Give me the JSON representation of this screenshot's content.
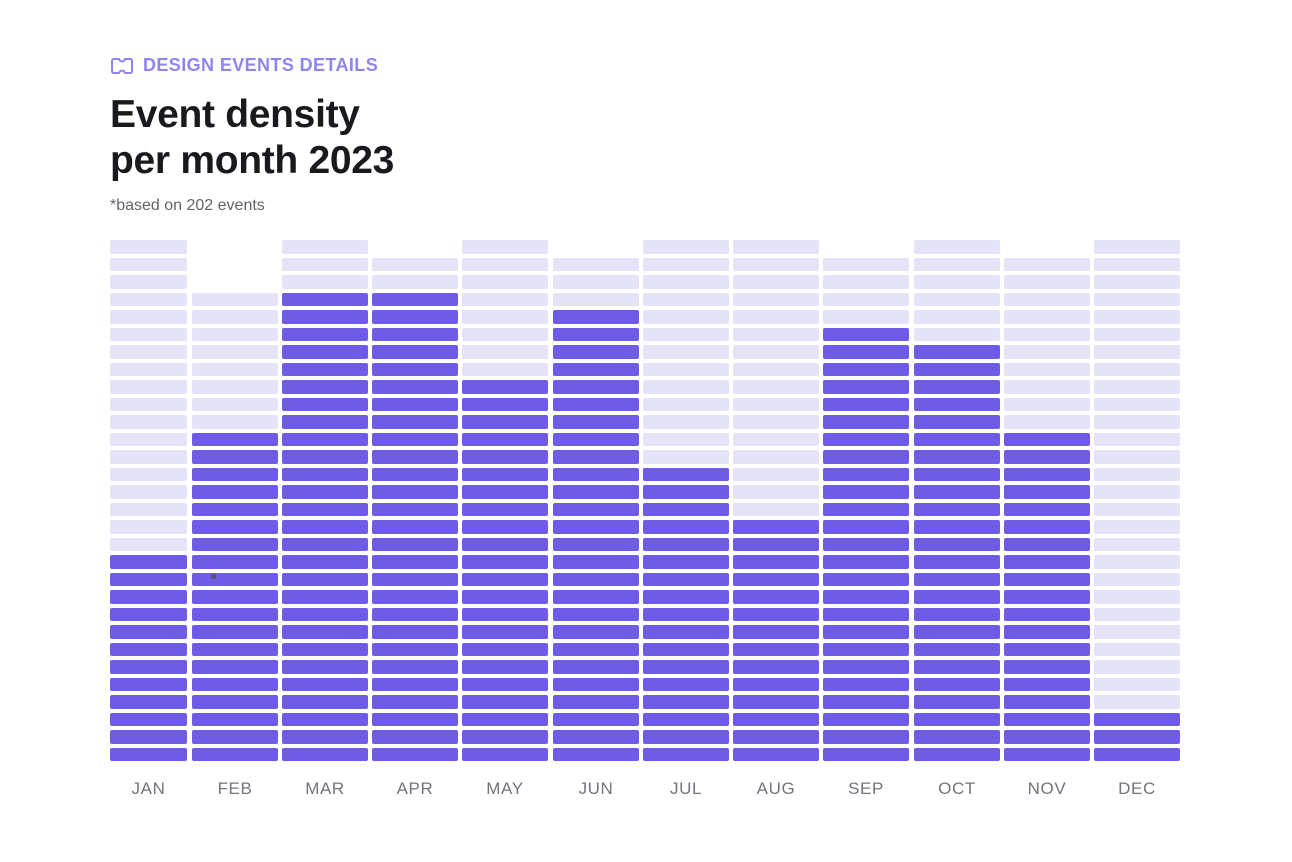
{
  "header": {
    "icon": "ticket-icon",
    "label": "DESIGN EVENTS DETAILS",
    "accent_color": "#8f85f0"
  },
  "title": {
    "line1": "Event density",
    "line2": "per month 2023"
  },
  "subtitle": "*based on 202 events",
  "chart_data": {
    "type": "bar",
    "variant": "waffle-equalizer-columns",
    "title": "Event density per month 2023",
    "subtitle": "*based on 202 events",
    "categories": [
      "JAN",
      "FEB",
      "MAR",
      "APR",
      "MAY",
      "JUN",
      "JUL",
      "AUG",
      "SEP",
      "OCT",
      "NOV",
      "DEC"
    ],
    "rows_total": 30,
    "ylim": [
      0,
      30
    ],
    "grid": false,
    "legend": "none",
    "series": [
      {
        "name": "filled cells (dark)",
        "values": [
          12,
          19,
          27,
          27,
          22,
          26,
          17,
          14,
          25,
          24,
          19,
          3
        ]
      },
      {
        "name": "faded cells (light)",
        "values": [
          18,
          8,
          3,
          2,
          8,
          3,
          13,
          16,
          4,
          6,
          10,
          27
        ]
      }
    ],
    "months": [
      {
        "label": "JAN",
        "empty": 0,
        "faded": 18,
        "filled": 12
      },
      {
        "label": "FEB",
        "empty": 3,
        "faded": 8,
        "filled": 19
      },
      {
        "label": "MAR",
        "empty": 0,
        "faded": 3,
        "filled": 27
      },
      {
        "label": "APR",
        "empty": 1,
        "faded": 2,
        "filled": 27
      },
      {
        "label": "MAY",
        "empty": 0,
        "faded": 8,
        "filled": 22
      },
      {
        "label": "JUN",
        "empty": 1,
        "faded": 3,
        "filled": 26
      },
      {
        "label": "JUL",
        "empty": 0,
        "faded": 13,
        "filled": 17
      },
      {
        "label": "AUG",
        "empty": 0,
        "faded": 16,
        "filled": 14
      },
      {
        "label": "SEP",
        "empty": 1,
        "faded": 4,
        "filled": 25
      },
      {
        "label": "OCT",
        "empty": 0,
        "faded": 6,
        "filled": 24
      },
      {
        "label": "NOV",
        "empty": 1,
        "faded": 10,
        "filled": 19
      },
      {
        "label": "DEC",
        "empty": 0,
        "faded": 27,
        "filled": 3
      }
    ],
    "colors": {
      "filled": "#6e5ce7",
      "faded": "#e5e3f8",
      "label": "#74747c"
    }
  }
}
